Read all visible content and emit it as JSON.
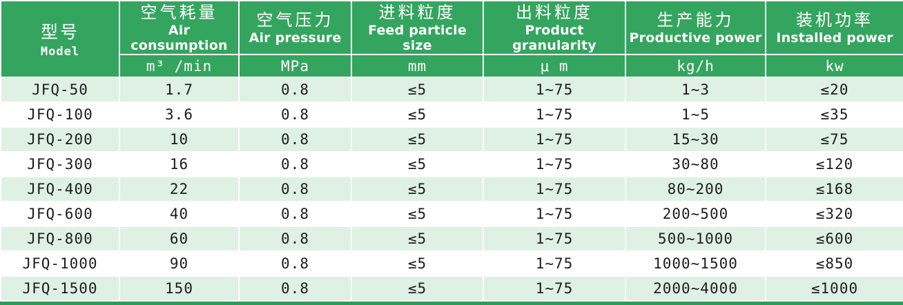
{
  "table": {
    "columns": [
      {
        "cn": "型号",
        "en": "Model",
        "unit": ""
      },
      {
        "cn": "空气耗量",
        "en": "Air consumption",
        "unit": "m³ /min"
      },
      {
        "cn": "空气压力",
        "en": "Air pressure",
        "unit": "MPa"
      },
      {
        "cn": "进料粒度",
        "en": "Feed particle size",
        "unit": "mm"
      },
      {
        "cn": "出料粒度",
        "en": "Product granularity",
        "unit": "μ m"
      },
      {
        "cn": "生产能力",
        "en": "Productive power",
        "unit": "kg/h"
      },
      {
        "cn": "装机功率",
        "en": "Installed power",
        "unit": "kw"
      }
    ],
    "rows": [
      {
        "model": "JFQ-50",
        "values": [
          "1.7",
          "0.8",
          "≤5",
          "1~75",
          "1~3",
          "≤20"
        ]
      },
      {
        "model": "JFQ-100",
        "values": [
          "3.6",
          "0.8",
          "≤5",
          "1~75",
          "1~5",
          "≤35"
        ]
      },
      {
        "model": "JFQ-200",
        "values": [
          "10",
          "0.8",
          "≤5",
          "1~75",
          "15~30",
          "≤75"
        ]
      },
      {
        "model": "JFQ-300",
        "values": [
          "16",
          "0.8",
          "≤5",
          "1~75",
          "30~80",
          "≤120"
        ]
      },
      {
        "model": "JFQ-400",
        "values": [
          "22",
          "0.8",
          "≤5",
          "1~75",
          "80~200",
          "≤168"
        ]
      },
      {
        "model": "JFQ-600",
        "values": [
          "40",
          "0.8",
          "≤5",
          "1~75",
          "200~500",
          "≤320"
        ]
      },
      {
        "model": "JFQ-800",
        "values": [
          "60",
          "0.8",
          "≤5",
          "1~75",
          "500~1000",
          "≤600"
        ]
      },
      {
        "model": "JFQ-1000",
        "values": [
          "90",
          "0.8",
          "≤5",
          "1~75",
          "1000~1500",
          "≤850"
        ]
      },
      {
        "model": "JFQ-1500",
        "values": [
          "150",
          "0.8",
          "≤5",
          "1~75",
          "2000~4000",
          "≤1000"
        ]
      }
    ]
  },
  "colors": {
    "header_green": "#34a55e",
    "row_green": "#def1e4",
    "row_white": "#ffffff",
    "bottom_bar_green": "#2f9b58",
    "header_text": "#ffffff",
    "body_text": "#1c1c1c"
  }
}
